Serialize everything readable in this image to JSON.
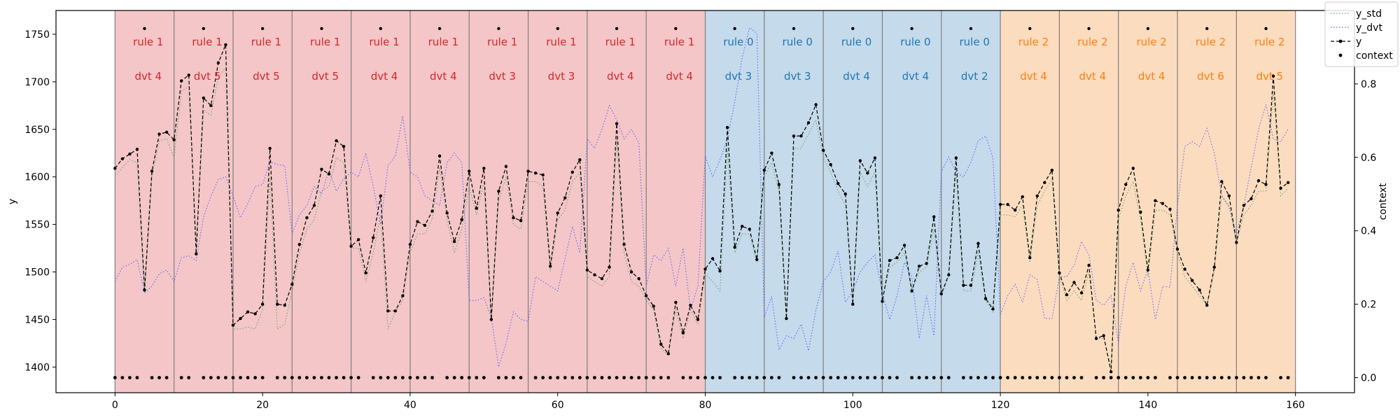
{
  "chart_data": {
    "type": "line",
    "title": "",
    "xlabel": "",
    "ylabel": "y",
    "y2label": "context",
    "xlim": [
      -8,
      168
    ],
    "ylim": [
      1373,
      1775
    ],
    "y2lim": [
      -0.041,
      1.0
    ],
    "x_ticks": [
      0,
      20,
      40,
      60,
      80,
      100,
      120,
      140,
      160
    ],
    "y_ticks": [
      1400,
      1450,
      1500,
      1550,
      1600,
      1650,
      1700,
      1750
    ],
    "y2_ticks": [
      0.0,
      0.2,
      0.4,
      0.6,
      0.8
    ],
    "y2_tick_labels": [
      "0.0",
      "0.2",
      "0.4",
      "0.6",
      "0.8"
    ],
    "legend": {
      "placement": "top-right",
      "entries": [
        {
          "key": "y_std",
          "label": "y_std",
          "style": "dotted",
          "color": "#5fa35f"
        },
        {
          "key": "y_dvt",
          "label": "y_dvt",
          "style": "dotted",
          "color": "#5b5bff"
        },
        {
          "key": "y",
          "label": "y",
          "style": "dashed-marker",
          "color": "#000000"
        },
        {
          "key": "context",
          "label": "context",
          "style": "points",
          "color": "#000000"
        }
      ]
    },
    "segments": [
      {
        "start": 0,
        "end": 8,
        "rule": "rule 1",
        "dvt": "dvt 4",
        "color": "#d62728",
        "bg": "#f4c6c8"
      },
      {
        "start": 8,
        "end": 16,
        "rule": "rule 1",
        "dvt": "dvt 5",
        "color": "#d62728",
        "bg": "#f4c6c8"
      },
      {
        "start": 16,
        "end": 24,
        "rule": "rule 1",
        "dvt": "dvt 5",
        "color": "#d62728",
        "bg": "#f4c6c8"
      },
      {
        "start": 24,
        "end": 32,
        "rule": "rule 1",
        "dvt": "dvt 5",
        "color": "#d62728",
        "bg": "#f4c6c8"
      },
      {
        "start": 32,
        "end": 40,
        "rule": "rule 1",
        "dvt": "dvt 4",
        "color": "#d62728",
        "bg": "#f4c6c8"
      },
      {
        "start": 40,
        "end": 48,
        "rule": "rule 1",
        "dvt": "dvt 4",
        "color": "#d62728",
        "bg": "#f4c6c8"
      },
      {
        "start": 48,
        "end": 56,
        "rule": "rule 1",
        "dvt": "dvt 3",
        "color": "#d62728",
        "bg": "#f4c6c8"
      },
      {
        "start": 56,
        "end": 64,
        "rule": "rule 1",
        "dvt": "dvt 3",
        "color": "#d62728",
        "bg": "#f4c6c8"
      },
      {
        "start": 64,
        "end": 72,
        "rule": "rule 1",
        "dvt": "dvt 4",
        "color": "#d62728",
        "bg": "#f4c6c8"
      },
      {
        "start": 72,
        "end": 80,
        "rule": "rule 1",
        "dvt": "dvt 4",
        "color": "#d62728",
        "bg": "#f4c6c8"
      },
      {
        "start": 80,
        "end": 88,
        "rule": "rule 0",
        "dvt": "dvt 3",
        "color": "#1f77b4",
        "bg": "#c5daeb"
      },
      {
        "start": 88,
        "end": 96,
        "rule": "rule 0",
        "dvt": "dvt 3",
        "color": "#1f77b4",
        "bg": "#c5daeb"
      },
      {
        "start": 96,
        "end": 104,
        "rule": "rule 0",
        "dvt": "dvt 4",
        "color": "#1f77b4",
        "bg": "#c5daeb"
      },
      {
        "start": 104,
        "end": 112,
        "rule": "rule 0",
        "dvt": "dvt 4",
        "color": "#1f77b4",
        "bg": "#c5daeb"
      },
      {
        "start": 112,
        "end": 120,
        "rule": "rule 0",
        "dvt": "dvt 2",
        "color": "#1f77b4",
        "bg": "#c5daeb"
      },
      {
        "start": 120,
        "end": 128,
        "rule": "rule 2",
        "dvt": "dvt 4",
        "color": "#ff7f0e",
        "bg": "#fcdcbf"
      },
      {
        "start": 128,
        "end": 136,
        "rule": "rule 2",
        "dvt": "dvt 4",
        "color": "#ff7f0e",
        "bg": "#fcdcbf"
      },
      {
        "start": 136,
        "end": 144,
        "rule": "rule 2",
        "dvt": "dvt 4",
        "color": "#ff7f0e",
        "bg": "#fcdcbf"
      },
      {
        "start": 144,
        "end": 152,
        "rule": "rule 2",
        "dvt": "dvt 6",
        "color": "#ff7f0e",
        "bg": "#fcdcbf"
      },
      {
        "start": 152,
        "end": 160,
        "rule": "rule 2",
        "dvt": "dvt 5",
        "color": "#ff7f0e",
        "bg": "#fcdcbf"
      }
    ],
    "series": {
      "y": [
        1609,
        1619,
        1624,
        1629,
        1481,
        1606,
        1645,
        1647,
        1639,
        1701,
        1707,
        1519,
        1683,
        1675,
        1720,
        1739,
        1444,
        1451,
        1458,
        1456,
        1466,
        1630,
        1466,
        1465,
        1487,
        1529,
        1557,
        1570,
        1608,
        1603,
        1638,
        1632,
        1527,
        1534,
        1499,
        1536,
        1580,
        1459,
        1459,
        1475,
        1529,
        1553,
        1549,
        1564,
        1622,
        1562,
        1532,
        1555,
        1606,
        1567,
        1609,
        1450,
        1585,
        1611,
        1557,
        1554,
        1606,
        1604,
        1602,
        1506,
        1562,
        1578,
        1605,
        1618,
        1502,
        1497,
        1493,
        1505,
        1656,
        1529,
        1500,
        1493,
        1475,
        1464,
        1424,
        1414,
        1468,
        1436,
        1465,
        1450,
        1503,
        1514,
        1501,
        1652,
        1526,
        1548,
        1545,
        1513,
        1607,
        1625,
        1592,
        1451,
        1643,
        1643,
        1657,
        1676,
        1628,
        1613,
        1593,
        1582,
        1466,
        1617,
        1604,
        1620,
        1469,
        1512,
        1515,
        1528,
        1480,
        1506,
        1509,
        1558,
        1477,
        1497,
        1620,
        1486,
        1486,
        1530,
        1472,
        1461,
        1571,
        1571,
        1565,
        1579,
        1515,
        1580,
        1594,
        1607,
        1499,
        1476,
        1489,
        1478,
        1507,
        1430,
        1433,
        1395,
        1565,
        1592,
        1609,
        1563,
        1502,
        1575,
        1572,
        1566,
        1524,
        1503,
        1491,
        1481,
        1465,
        1505,
        1595,
        1580,
        1531,
        1570,
        1577,
        1596,
        1592,
        1706,
        1588,
        1594
      ],
      "y_std": [
        1600,
        1610,
        1618,
        1615,
        1478,
        1600,
        1638,
        1640,
        1620,
        1690,
        1695,
        1530,
        1670,
        1665,
        1705,
        1715,
        1440,
        1440,
        1442,
        1440,
        1460,
        1600,
        1440,
        1445,
        1480,
        1520,
        1545,
        1555,
        1585,
        1590,
        1620,
        1615,
        1525,
        1525,
        1490,
        1520,
        1560,
        1440,
        1458,
        1470,
        1520,
        1540,
        1540,
        1555,
        1610,
        1555,
        1520,
        1545,
        1590,
        1560,
        1595,
        1450,
        1575,
        1600,
        1550,
        1545,
        1595,
        1595,
        1590,
        1500,
        1555,
        1565,
        1595,
        1605,
        1495,
        1490,
        1485,
        1495,
        1640,
        1520,
        1490,
        1485,
        1470,
        1460,
        1420,
        1412,
        1460,
        1430,
        1460,
        1445,
        1498,
        1490,
        1480,
        1630,
        1520,
        1540,
        1540,
        1510,
        1600,
        1615,
        1585,
        1455,
        1630,
        1630,
        1645,
        1660,
        1620,
        1605,
        1585,
        1570,
        1470,
        1605,
        1590,
        1605,
        1470,
        1505,
        1510,
        1520,
        1480,
        1500,
        1505,
        1545,
        1475,
        1495,
        1605,
        1480,
        1480,
        1520,
        1470,
        1458,
        1560,
        1560,
        1558,
        1570,
        1510,
        1570,
        1585,
        1598,
        1495,
        1470,
        1480,
        1470,
        1500,
        1430,
        1430,
        1400,
        1555,
        1580,
        1595,
        1555,
        1495,
        1565,
        1565,
        1560,
        1520,
        1495,
        1485,
        1475,
        1465,
        1500,
        1580,
        1570,
        1530,
        1560,
        1570,
        1585,
        1585,
        1690,
        1580,
        1588
      ],
      "y_dvt": [
        1490,
        1505,
        1508,
        1513,
        1478,
        1485,
        1498,
        1502,
        1490,
        1515,
        1517,
        1512,
        1558,
        1580,
        1597,
        1600,
        1580,
        1557,
        1572,
        1590,
        1592,
        1616,
        1613,
        1612,
        1540,
        1560,
        1570,
        1590,
        1582,
        1607,
        1585,
        1598,
        1605,
        1600,
        1625,
        1590,
        1550,
        1612,
        1622,
        1664,
        1605,
        1600,
        1580,
        1575,
        1570,
        1615,
        1625,
        1615,
        1470,
        1470,
        1473,
        1452,
        1400,
        1425,
        1458,
        1450,
        1448,
        1495,
        1490,
        1485,
        1480,
        1514,
        1548,
        1520,
        1640,
        1630,
        1650,
        1675,
        1660,
        1640,
        1650,
        1636,
        1485,
        1518,
        1512,
        1525,
        1485,
        1525,
        1460,
        1485,
        1622,
        1600,
        1618,
        1640,
        1679,
        1725,
        1757,
        1751,
        1452,
        1474,
        1418,
        1433,
        1430,
        1445,
        1417,
        1460,
        1490,
        1500,
        1522,
        1468,
        1480,
        1500,
        1510,
        1518,
        1478,
        1450,
        1475,
        1510,
        1495,
        1430,
        1475,
        1433,
        1605,
        1621,
        1605,
        1600,
        1615,
        1638,
        1643,
        1620,
        1455,
        1475,
        1487,
        1468,
        1497,
        1492,
        1451,
        1451,
        1495,
        1495,
        1507,
        1532,
        1518,
        1470,
        1465,
        1475,
        1425,
        1485,
        1510,
        1480,
        1503,
        1450,
        1485,
        1484,
        1570,
        1632,
        1637,
        1632,
        1651,
        1625,
        1580,
        1568,
        1540,
        1570,
        1610,
        1650,
        1676,
        1640,
        1637,
        1650
      ],
      "context_x": [
        0,
        1,
        2,
        3,
        5,
        6,
        7,
        9,
        10,
        12,
        13,
        14,
        15,
        16,
        17,
        18,
        19,
        20,
        22,
        23,
        24,
        25,
        26,
        27,
        28,
        29,
        30,
        31,
        32,
        33,
        35,
        36,
        37,
        38,
        39,
        40,
        41,
        42,
        43,
        45,
        46,
        47,
        48,
        49,
        50,
        52,
        53,
        54,
        55,
        57,
        58,
        59,
        60,
        61,
        62,
        63,
        64,
        65,
        66,
        67,
        68,
        69,
        70,
        71,
        72,
        73,
        74,
        75,
        77,
        78,
        79,
        80,
        81,
        82,
        84,
        85,
        86,
        87,
        88,
        89,
        90,
        92,
        93,
        94,
        95,
        96,
        97,
        98,
        99,
        100,
        101,
        102,
        103,
        104,
        105,
        106,
        108,
        109,
        110,
        111,
        112,
        113,
        115,
        116,
        117,
        118,
        119,
        120,
        121,
        122,
        123,
        124,
        125,
        126,
        127,
        128,
        129,
        130,
        131,
        133,
        134,
        135,
        136,
        137,
        138,
        139,
        140,
        141,
        143,
        144,
        145,
        146,
        147,
        148,
        149,
        150,
        151,
        152,
        153,
        154,
        155,
        156,
        158,
        159
      ],
      "context_value": 0.0
    }
  }
}
